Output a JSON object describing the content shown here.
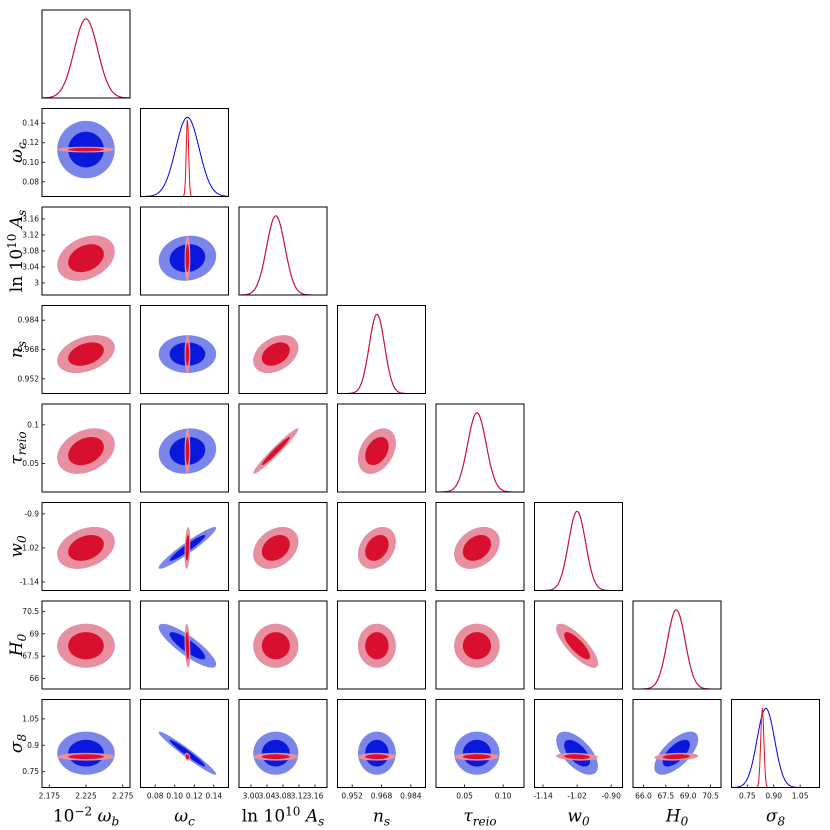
{
  "chart_data": {
    "type": "triangle",
    "params": [
      {
        "id": "omega_b",
        "label": {
          "pre": "10",
          "sup": "−2",
          "main": "ω",
          "sub": "b"
        },
        "range": [
          2.165,
          2.285
        ],
        "ticks": [
          "2.175",
          "2.225",
          "2.275"
        ],
        "tick_values": [
          2.175,
          2.225,
          2.275
        ],
        "mean": 2.225,
        "sigma": 0.016
      },
      {
        "id": "omega_c",
        "label": {
          "pre": "",
          "sup": "",
          "main": "ω",
          "sub": "c"
        },
        "range": [
          0.065,
          0.155
        ],
        "ticks": [
          "0.08",
          "0.10",
          "0.12",
          "0.14"
        ],
        "tick_values": [
          0.08,
          0.1,
          0.12,
          0.14
        ],
        "mean": 0.113,
        "sigma": 0.012
      },
      {
        "id": "ln10As",
        "label": {
          "pre": "ln 10",
          "sup": "10",
          "main": "A",
          "sub": "s"
        },
        "range": [
          2.97,
          3.19
        ],
        "ticks": [
          "3",
          "3.04",
          "3.08",
          "3.12",
          "3.16"
        ],
        "tick_values": [
          3.0,
          3.04,
          3.08,
          3.12,
          3.16
        ],
        "mean": 3.062,
        "sigma": 0.023
      },
      {
        "id": "n_s",
        "label": {
          "pre": "",
          "sup": "",
          "main": "n",
          "sub": "s"
        },
        "range": [
          0.944,
          0.992
        ],
        "ticks": [
          "0.952",
          "0.968",
          "0.984"
        ],
        "tick_values": [
          0.952,
          0.968,
          0.984
        ],
        "mean": 0.9655,
        "sigma": 0.0042
      },
      {
        "id": "tau_reio",
        "label": {
          "pre": "",
          "sup": "",
          "main": "τ",
          "sub": "reio"
        },
        "range": [
          0.013,
          0.127
        ],
        "ticks": [
          "0.05",
          "0.1"
        ],
        "tick_values": [
          0.05,
          0.1
        ],
        "mean": 0.066,
        "sigma": 0.012
      },
      {
        "id": "w_0",
        "label": {
          "pre": "",
          "sup": "",
          "main": "w",
          "sub": "0"
        },
        "range": [
          -1.17,
          -0.86
        ],
        "ticks": [
          "-1.14",
          "-1.02",
          "-0.9"
        ],
        "tick_values": [
          -1.14,
          -1.02,
          -0.9
        ],
        "mean": -1.02,
        "sigma": 0.03
      },
      {
        "id": "H_0",
        "label": {
          "pre": "",
          "sup": "",
          "main": "H",
          "sub": "0"
        },
        "range": [
          65.3,
          71.2
        ],
        "ticks": [
          "66",
          "67.5",
          "69",
          "70.5"
        ],
        "tick_values": [
          66,
          67.5,
          69,
          70.5
        ],
        "mean": 68.2,
        "sigma": 0.6
      },
      {
        "id": "sigma_8",
        "label": {
          "pre": "",
          "sup": "",
          "main": "σ",
          "sub": "8"
        },
        "range": [
          0.66,
          1.16
        ],
        "ticks": [
          "0.75",
          "0.9",
          "1.05"
        ],
        "tick_values": [
          0.75,
          0.9,
          1.05
        ],
        "mean": 0.835,
        "sigma": 0.05
      }
    ],
    "x_tick_labels": [
      [
        "2.175",
        "2.225",
        "2.275"
      ],
      [
        "0.08",
        "0.10",
        "0.12",
        "0.14"
      ],
      [
        "3.00",
        "3.04",
        "3.08",
        "3.12",
        "3.16"
      ],
      [
        "0.952",
        "0.968",
        "0.984"
      ],
      [
        "0.05",
        "0.10"
      ],
      [
        "-1.14",
        "-1.02",
        "-0.90"
      ],
      [
        "66.0",
        "67.5",
        "69.0",
        "70.5"
      ],
      [
        "0.75",
        "0.90",
        "1.05"
      ]
    ],
    "series": [
      {
        "name": "",
        "color": "#0000dd",
        "fill_outer": "#7a86ea",
        "fill_inner": "#0a18dc"
      },
      {
        "name": "",
        "color": "#e01020",
        "fill_outer": "#e8909f",
        "fill_inner": "#d8102e"
      }
    ],
    "correlations": {
      "omega_c|ln10As": 0.1,
      "omega_c|tau_reio": 0.1,
      "omega_c|w_0": 0.95,
      "omega_c|H_0": -0.85,
      "omega_c|sigma_8": -0.97,
      "omega_b|ln10As": 0.3,
      "omega_b|n_s": 0.35,
      "omega_b|tau_reio": 0.3,
      "omega_b|w_0": 0.3,
      "ln10As|n_s": 0.35,
      "ln10As|tau_reio": 0.97,
      "ln10As|w_0": 0.3,
      "n_s|tau_reio": 0.35,
      "n_s|w_0": 0.3,
      "tau_reio|w_0": 0.3,
      "w_0|H_0": -0.8,
      "w_0|sigma_8": -0.6,
      "H_0|sigma_8": 0.65
    },
    "red_sigma_scale": {
      "omega_c": 0.1,
      "sigma_8": 0.18
    },
    "blue_offset_sigma": {
      "sigma_8": 0.4
    }
  }
}
